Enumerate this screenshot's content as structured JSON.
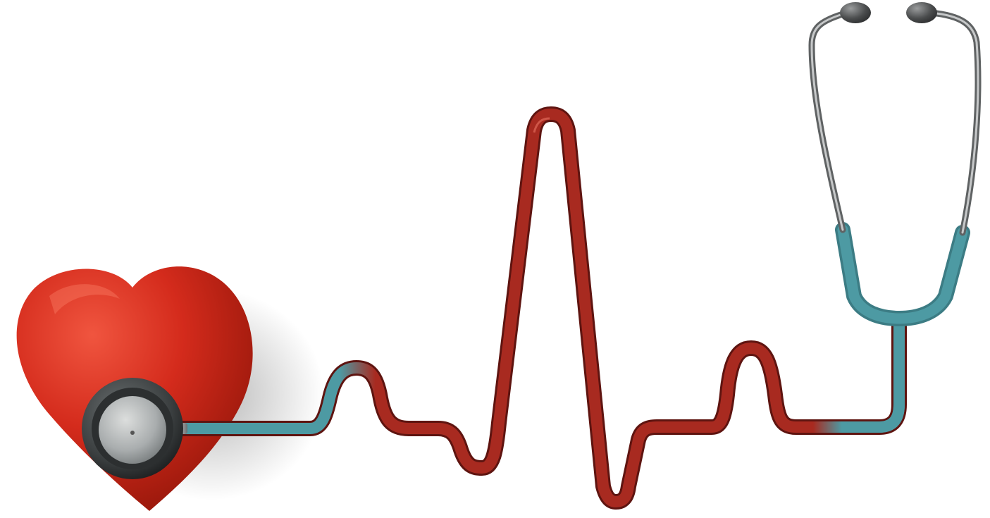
{
  "image": {
    "subject": "heart-and-stethoscope-heartbeat-line",
    "background_color": "#ffffff",
    "colors": {
      "heart_red": "#d42b1c",
      "heart_dark": "#8e1408",
      "tube_red": "#a82a20",
      "tube_teal": "#4d9aa3",
      "metal": "#8d9091",
      "earpiece": "#4a4c4d"
    },
    "icons": [
      "heart-icon",
      "stethoscope-chestpiece-icon",
      "stethoscope-earpiece-icon"
    ]
  }
}
